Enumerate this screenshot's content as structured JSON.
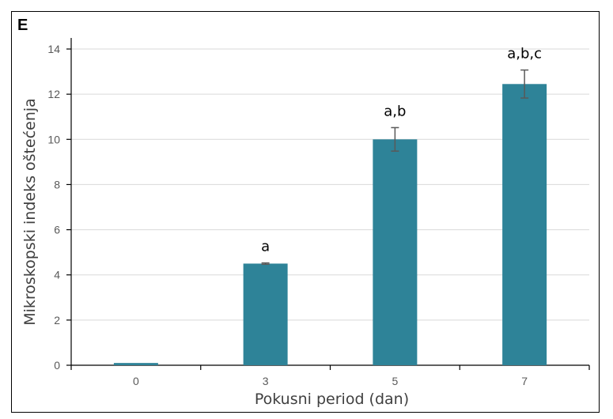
{
  "panel_label": "E",
  "chart_data": {
    "type": "bar",
    "categories": [
      "0",
      "3",
      "5",
      "7"
    ],
    "values": [
      0.1,
      4.5,
      10.0,
      12.45
    ],
    "errors": [
      0.0,
      0.03,
      0.52,
      0.62
    ],
    "annotations": [
      "",
      "a",
      "a,b",
      "a,b,c"
    ],
    "xlabel": "Pokusni period (dan)",
    "ylabel": "Mikroskopski indeks oštećenja",
    "ylim": [
      0,
      14
    ],
    "yticks": [
      0,
      2,
      4,
      6,
      8,
      10,
      12,
      14
    ],
    "grid": true,
    "bar_color": "#2e8398",
    "grid_color": "#d9d9d9",
    "error_bar_color": "#595959"
  }
}
